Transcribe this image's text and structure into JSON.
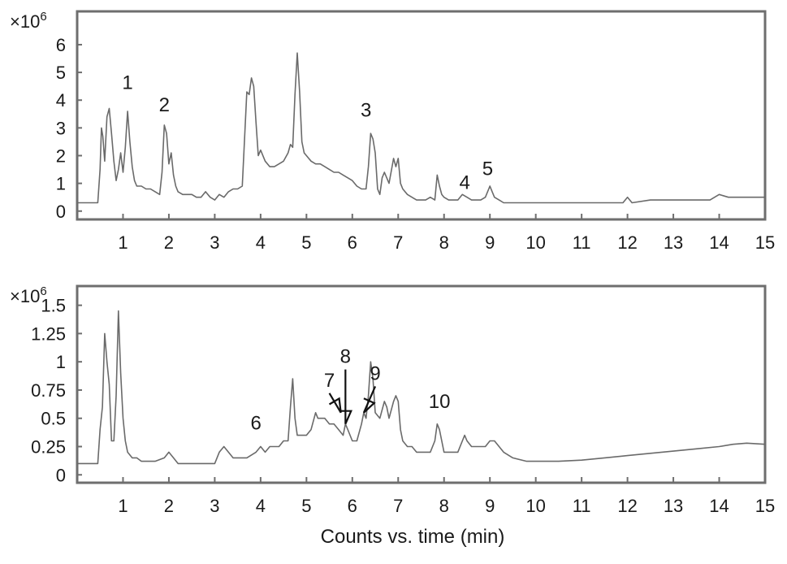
{
  "chart_data": [
    {
      "type": "line",
      "y_multiplier_label": "×10",
      "y_multiplier_exponent": "6",
      "xlim": [
        0,
        15
      ],
      "ylim": [
        -0.3,
        7.2
      ],
      "x_ticks": [
        "1",
        "2",
        "3",
        "4",
        "5",
        "6",
        "7",
        "8",
        "9",
        "10",
        "11",
        "12",
        "13",
        "14",
        "15"
      ],
      "y_ticks": [
        {
          "value": 0,
          "label": "0"
        },
        {
          "value": 1,
          "label": "1"
        },
        {
          "value": 2,
          "label": "2"
        },
        {
          "value": 3,
          "label": "3"
        },
        {
          "value": 4,
          "label": "4"
        },
        {
          "value": 5,
          "label": "5"
        },
        {
          "value": 6,
          "label": "6"
        }
      ],
      "series": [
        {
          "x": [
            0,
            0.45,
            0.5,
            0.53,
            0.56,
            0.6,
            0.65,
            0.7,
            0.75,
            0.8,
            0.85,
            0.9,
            0.95,
            1.0,
            1.05,
            1.1,
            1.15,
            1.2,
            1.25,
            1.3,
            1.4,
            1.5,
            1.6,
            1.7,
            1.8,
            1.85,
            1.9,
            1.95,
            2.0,
            2.05,
            2.1,
            2.15,
            2.2,
            2.3,
            2.4,
            2.5,
            2.6,
            2.7,
            2.8,
            2.9,
            3.0,
            3.1,
            3.2,
            3.3,
            3.4,
            3.5,
            3.6,
            3.7,
            3.75,
            3.8,
            3.85,
            3.9,
            3.95,
            4.0,
            4.1,
            4.2,
            4.3,
            4.4,
            4.5,
            4.6,
            4.65,
            4.7,
            4.75,
            4.8,
            4.85,
            4.9,
            4.95,
            5.0,
            5.1,
            5.2,
            5.3,
            5.4,
            5.5,
            5.6,
            5.7,
            5.8,
            5.9,
            6.0,
            6.1,
            6.2,
            6.3,
            6.35,
            6.4,
            6.45,
            6.5,
            6.55,
            6.6,
            6.65,
            6.7,
            6.8,
            6.9,
            6.95,
            7.0,
            7.05,
            7.1,
            7.2,
            7.3,
            7.4,
            7.5,
            7.6,
            7.7,
            7.8,
            7.85,
            7.9,
            7.95,
            8.0,
            8.1,
            8.2,
            8.3,
            8.4,
            8.5,
            8.6,
            8.7,
            8.8,
            8.9,
            9.0,
            9.05,
            9.1,
            9.2,
            9.3,
            9.5,
            10,
            11,
            11.5,
            11.9,
            12,
            12.1,
            12.5,
            13,
            13.5,
            13.8,
            14,
            14.2,
            14.5,
            15
          ],
          "y": [
            0.3,
            0.3,
            1.5,
            3.0,
            2.7,
            1.8,
            3.4,
            3.7,
            2.8,
            1.8,
            1.1,
            1.5,
            2.1,
            1.4,
            2.3,
            3.6,
            2.5,
            1.6,
            1.1,
            0.9,
            0.9,
            0.8,
            0.8,
            0.7,
            0.6,
            1.4,
            3.1,
            2.8,
            1.7,
            2.1,
            1.3,
            0.9,
            0.7,
            0.6,
            0.6,
            0.6,
            0.5,
            0.5,
            0.7,
            0.5,
            0.4,
            0.6,
            0.5,
            0.7,
            0.8,
            0.8,
            0.9,
            4.3,
            4.2,
            4.8,
            4.5,
            3.2,
            2.0,
            2.2,
            1.8,
            1.6,
            1.6,
            1.7,
            1.8,
            2.1,
            2.4,
            2.3,
            4.2,
            5.7,
            4.3,
            2.5,
            2.1,
            2.0,
            1.8,
            1.7,
            1.7,
            1.6,
            1.5,
            1.4,
            1.4,
            1.3,
            1.2,
            1.1,
            0.9,
            0.8,
            0.8,
            1.6,
            2.8,
            2.6,
            2.1,
            0.8,
            0.6,
            1.2,
            1.4,
            1.0,
            1.9,
            1.6,
            1.9,
            1.0,
            0.8,
            0.6,
            0.5,
            0.4,
            0.4,
            0.4,
            0.5,
            0.4,
            1.3,
            0.9,
            0.6,
            0.5,
            0.4,
            0.4,
            0.4,
            0.6,
            0.5,
            0.4,
            0.4,
            0.4,
            0.5,
            0.9,
            0.7,
            0.5,
            0.4,
            0.3,
            0.3,
            0.3,
            0.3,
            0.3,
            0.3,
            0.5,
            0.3,
            0.4,
            0.4,
            0.4,
            0.4,
            0.6,
            0.5,
            0.5,
            0.5
          ]
        }
      ],
      "annotations": [
        {
          "label": "1",
          "x": 1.1,
          "y": 4.4
        },
        {
          "label": "2",
          "x": 1.9,
          "y": 3.6
        },
        {
          "label": "3",
          "x": 6.3,
          "y": 3.4
        },
        {
          "label": "4",
          "x": 8.45,
          "y": 0.8
        },
        {
          "label": "5",
          "x": 8.95,
          "y": 1.3
        }
      ]
    },
    {
      "type": "line",
      "y_multiplier_label": "×10",
      "y_multiplier_exponent": "6",
      "xlim": [
        0,
        15
      ],
      "ylim": [
        -0.07,
        1.67
      ],
      "x_ticks": [
        "1",
        "2",
        "3",
        "4",
        "5",
        "6",
        "7",
        "8",
        "9",
        "10",
        "11",
        "12",
        "13",
        "14",
        "15"
      ],
      "y_ticks": [
        {
          "value": 0,
          "label": "0"
        },
        {
          "value": 0.25,
          "label": "0.25"
        },
        {
          "value": 0.5,
          "label": "0.5"
        },
        {
          "value": 0.75,
          "label": "0.75"
        },
        {
          "value": 1,
          "label": "1"
        },
        {
          "value": 1.25,
          "label": "1.25"
        },
        {
          "value": 1.5,
          "label": "1.5"
        }
      ],
      "series": [
        {
          "x": [
            0,
            0.45,
            0.5,
            0.55,
            0.6,
            0.65,
            0.7,
            0.75,
            0.8,
            0.85,
            0.9,
            0.95,
            1.0,
            1.05,
            1.1,
            1.2,
            1.3,
            1.4,
            1.5,
            1.7,
            1.9,
            2.0,
            2.1,
            2.2,
            2.4,
            2.6,
            2.8,
            3.0,
            3.1,
            3.2,
            3.3,
            3.4,
            3.5,
            3.7,
            3.9,
            4.0,
            4.1,
            4.2,
            4.3,
            4.4,
            4.5,
            4.6,
            4.65,
            4.7,
            4.75,
            4.8,
            4.9,
            5.0,
            5.1,
            5.2,
            5.25,
            5.3,
            5.4,
            5.5,
            5.6,
            5.7,
            5.8,
            5.85,
            5.9,
            6.0,
            6.1,
            6.2,
            6.25,
            6.3,
            6.35,
            6.4,
            6.45,
            6.5,
            6.6,
            6.7,
            6.75,
            6.8,
            6.9,
            6.95,
            7.0,
            7.05,
            7.1,
            7.2,
            7.3,
            7.4,
            7.5,
            7.6,
            7.7,
            7.8,
            7.85,
            7.9,
            7.95,
            8.0,
            8.1,
            8.2,
            8.3,
            8.4,
            8.45,
            8.5,
            8.6,
            8.7,
            8.8,
            8.9,
            9.0,
            9.1,
            9.2,
            9.3,
            9.5,
            9.8,
            10.0,
            10.5,
            11,
            11.5,
            12,
            12.5,
            13,
            13.5,
            14,
            14.3,
            14.6,
            15
          ],
          "y": [
            0.1,
            0.1,
            0.4,
            0.6,
            1.25,
            1.0,
            0.8,
            0.3,
            0.3,
            0.7,
            1.45,
            0.9,
            0.5,
            0.3,
            0.2,
            0.15,
            0.15,
            0.12,
            0.12,
            0.12,
            0.15,
            0.2,
            0.15,
            0.1,
            0.1,
            0.1,
            0.1,
            0.1,
            0.2,
            0.25,
            0.2,
            0.15,
            0.15,
            0.15,
            0.2,
            0.25,
            0.2,
            0.25,
            0.25,
            0.25,
            0.3,
            0.3,
            0.6,
            0.85,
            0.5,
            0.35,
            0.35,
            0.35,
            0.4,
            0.55,
            0.5,
            0.5,
            0.5,
            0.45,
            0.45,
            0.4,
            0.35,
            0.45,
            0.4,
            0.3,
            0.3,
            0.45,
            0.55,
            0.5,
            0.7,
            1.0,
            0.85,
            0.55,
            0.5,
            0.65,
            0.6,
            0.5,
            0.65,
            0.7,
            0.65,
            0.4,
            0.3,
            0.25,
            0.25,
            0.2,
            0.2,
            0.2,
            0.2,
            0.3,
            0.45,
            0.4,
            0.3,
            0.2,
            0.2,
            0.2,
            0.2,
            0.3,
            0.35,
            0.3,
            0.25,
            0.25,
            0.25,
            0.25,
            0.3,
            0.3,
            0.25,
            0.2,
            0.15,
            0.12,
            0.12,
            0.12,
            0.13,
            0.15,
            0.17,
            0.19,
            0.21,
            0.23,
            0.25,
            0.27,
            0.28,
            0.27
          ]
        }
      ],
      "annotations": [
        {
          "label": "6",
          "x": 3.9,
          "y": 0.4
        },
        {
          "label": "7",
          "x": 5.5,
          "y": 0.78,
          "arrow_to": [
            5.75,
            0.55
          ]
        },
        {
          "label": "8",
          "x": 5.85,
          "y": 0.99,
          "arrow_to": [
            5.85,
            0.45
          ]
        },
        {
          "label": "9",
          "x": 6.5,
          "y": 0.84,
          "arrow_to": [
            6.25,
            0.55
          ]
        },
        {
          "label": "10",
          "x": 7.9,
          "y": 0.59
        }
      ]
    }
  ],
  "xlabel": "Counts vs. time (min)"
}
